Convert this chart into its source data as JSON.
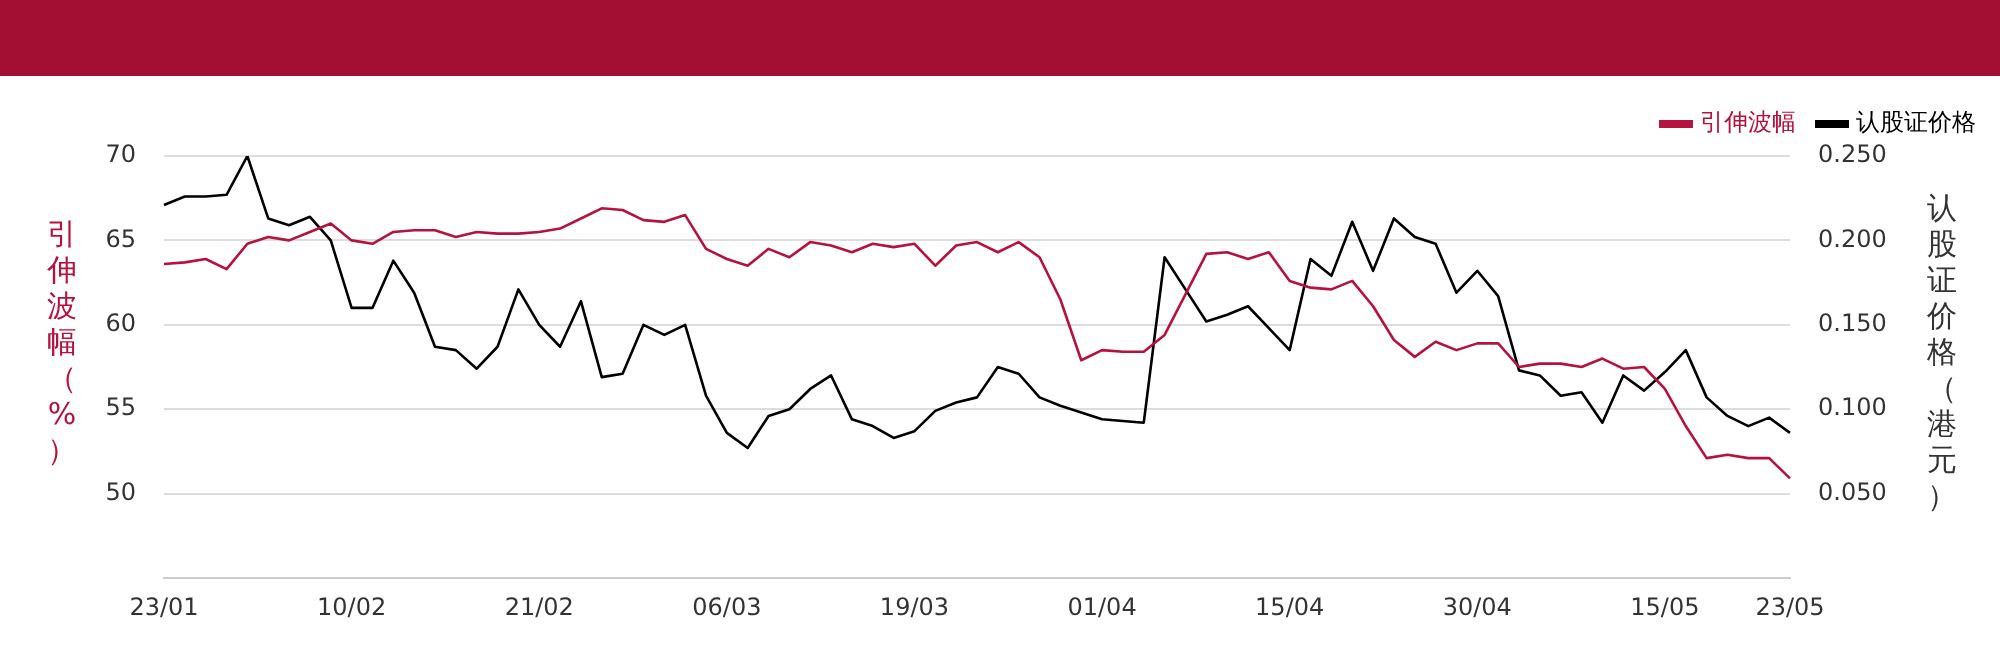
{
  "chart_data": {
    "type": "line",
    "ylabel": "引伸波幅（%）",
    "y2label": "认股证价格（港元）",
    "categories": [
      "23/01",
      null,
      null,
      null,
      null,
      null,
      null,
      null,
      null,
      "10/02",
      null,
      null,
      null,
      null,
      null,
      null,
      null,
      null,
      "21/02",
      null,
      null,
      null,
      null,
      null,
      null,
      null,
      null,
      "06/03",
      null,
      null,
      null,
      null,
      null,
      null,
      null,
      null,
      "19/03",
      null,
      null,
      null,
      null,
      null,
      null,
      null,
      null,
      "01/04",
      null,
      null,
      null,
      null,
      null,
      null,
      null,
      null,
      "15/04",
      null,
      null,
      null,
      null,
      null,
      null,
      null,
      null,
      "30/04",
      null,
      null,
      null,
      null,
      null,
      null,
      null,
      null,
      "15/05",
      null,
      null,
      null,
      null,
      null,
      "23/05"
    ],
    "series": [
      {
        "name": "引伸波幅",
        "color": "#b5123e",
        "axis": "y",
        "values": [
          63.6,
          63.7,
          63.9,
          63.3,
          64.8,
          65.2,
          65.0,
          65.5,
          66.0,
          65.0,
          64.8,
          65.5,
          65.6,
          65.6,
          65.2,
          65.5,
          65.4,
          65.4,
          65.5,
          65.7,
          66.3,
          66.9,
          66.8,
          66.2,
          66.1,
          66.5,
          64.5,
          63.9,
          63.5,
          64.5,
          64.0,
          64.9,
          64.7,
          64.3,
          64.8,
          64.6,
          64.8,
          63.5,
          64.7,
          64.9,
          64.3,
          64.9,
          64.0,
          61.5,
          57.9,
          58.5,
          58.4,
          58.4,
          59.4,
          61.8,
          64.2,
          64.3,
          63.9,
          64.3,
          62.6,
          62.2,
          62.1,
          62.6,
          61.1,
          59.1,
          58.1,
          59.0,
          58.5,
          58.9,
          58.9,
          57.5,
          57.7,
          57.7,
          57.5,
          58.0,
          57.4,
          57.5,
          56.2,
          54.0,
          52.1,
          52.3,
          52.1,
          52.1,
          50.9
        ]
      },
      {
        "name": "认股证价格",
        "color": "#000000",
        "axis": "y2",
        "values": [
          0.221,
          0.226,
          0.226,
          0.227,
          0.25,
          0.213,
          0.209,
          0.214,
          0.2,
          0.16,
          0.16,
          0.188,
          0.169,
          0.137,
          0.135,
          0.124,
          0.137,
          0.171,
          0.15,
          0.137,
          0.164,
          0.119,
          0.121,
          0.15,
          0.144,
          0.15,
          0.108,
          0.086,
          0.077,
          0.096,
          0.1,
          0.112,
          0.12,
          0.094,
          0.09,
          0.083,
          0.087,
          0.099,
          0.104,
          0.107,
          0.125,
          0.121,
          0.107,
          0.102,
          0.098,
          0.094,
          0.093,
          0.092,
          0.19,
          0.171,
          0.152,
          0.156,
          0.161,
          0.148,
          0.135,
          0.189,
          0.179,
          0.211,
          0.182,
          0.213,
          0.202,
          0.198,
          0.169,
          0.182,
          0.167,
          0.123,
          0.12,
          0.108,
          0.11,
          0.092,
          0.12,
          0.111,
          0.122,
          0.135,
          0.107,
          0.096,
          0.09,
          0.095,
          0.086
        ]
      }
    ],
    "ylim": [
      45,
      70
    ],
    "yticks": [
      50,
      55,
      60,
      65,
      70
    ],
    "y2lim": [
      0,
      0.25
    ],
    "y2ticks": [
      {
        "value": 0.05,
        "label": "0.050"
      },
      {
        "value": 0.1,
        "label": "0.100"
      },
      {
        "value": 0.15,
        "label": "0.150"
      },
      {
        "value": 0.2,
        "label": "0.200"
      },
      {
        "value": 0.25,
        "label": "0.250"
      }
    ],
    "grid": "y",
    "legend": "top right"
  }
}
